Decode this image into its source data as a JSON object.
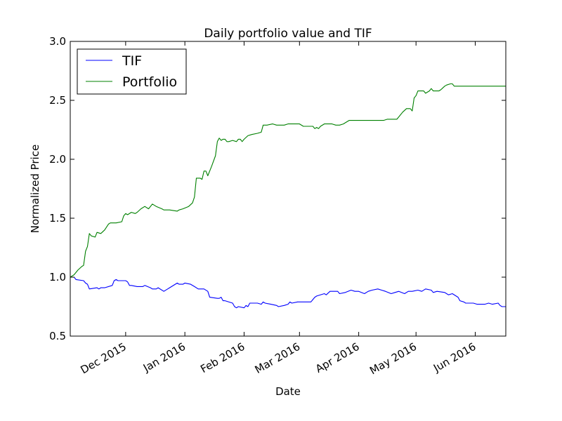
{
  "chart_data": {
    "type": "line",
    "title": "Daily portfolio value and TIF",
    "xlabel": "Date",
    "ylabel": "Normalized Price",
    "ylim": [
      0.5,
      3.0
    ],
    "xlim": [
      "2015-11-02",
      "2016-06-17"
    ],
    "yticks": [
      {
        "value": 0.5,
        "label": "0.5"
      },
      {
        "value": 1.0,
        "label": "1.0"
      },
      {
        "value": 1.5,
        "label": "1.5"
      },
      {
        "value": 2.0,
        "label": "2.0"
      },
      {
        "value": 2.5,
        "label": "2.5"
      },
      {
        "value": 3.0,
        "label": "3.0"
      }
    ],
    "xticks": [
      {
        "date": "2015-12-01",
        "label": "Dec 2015"
      },
      {
        "date": "2016-01-01",
        "label": "Jan 2016"
      },
      {
        "date": "2016-02-01",
        "label": "Feb 2016"
      },
      {
        "date": "2016-03-01",
        "label": "Mar 2016"
      },
      {
        "date": "2016-04-01",
        "label": "Apr 2016"
      },
      {
        "date": "2016-05-01",
        "label": "May 2016"
      },
      {
        "date": "2016-06-01",
        "label": "Jun 2016"
      }
    ],
    "grid": false,
    "legend_position": "top-left",
    "series": [
      {
        "name": "TIF",
        "color": "#0000ff",
        "points": [
          [
            "2015-11-02",
            1.0
          ],
          [
            "2015-11-04",
            1.0
          ],
          [
            "2015-11-05",
            0.98
          ],
          [
            "2015-11-09",
            0.97
          ],
          [
            "2015-11-10",
            0.95
          ],
          [
            "2015-11-11",
            0.94
          ],
          [
            "2015-11-12",
            0.9
          ],
          [
            "2015-11-16",
            0.91
          ],
          [
            "2015-11-17",
            0.9
          ],
          [
            "2015-11-18",
            0.91
          ],
          [
            "2015-11-20",
            0.91
          ],
          [
            "2015-11-24",
            0.93
          ],
          [
            "2015-11-25",
            0.97
          ],
          [
            "2015-11-26",
            0.98
          ],
          [
            "2015-11-27",
            0.97
          ],
          [
            "2015-12-01",
            0.97
          ],
          [
            "2015-12-02",
            0.96
          ],
          [
            "2015-12-03",
            0.93
          ],
          [
            "2015-12-04",
            0.93
          ],
          [
            "2015-12-07",
            0.92
          ],
          [
            "2015-12-10",
            0.92
          ],
          [
            "2015-12-11",
            0.93
          ],
          [
            "2015-12-14",
            0.91
          ],
          [
            "2015-12-15",
            0.9
          ],
          [
            "2015-12-17",
            0.9
          ],
          [
            "2015-12-18",
            0.91
          ],
          [
            "2015-12-21",
            0.88
          ],
          [
            "2015-12-23",
            0.9
          ],
          [
            "2015-12-24",
            0.91
          ],
          [
            "2015-12-28",
            0.95
          ],
          [
            "2015-12-29",
            0.94
          ],
          [
            "2015-12-31",
            0.94
          ],
          [
            "2016-01-01",
            0.95
          ],
          [
            "2016-01-04",
            0.94
          ],
          [
            "2016-01-06",
            0.92
          ],
          [
            "2016-01-08",
            0.9
          ],
          [
            "2016-01-11",
            0.9
          ],
          [
            "2016-01-13",
            0.88
          ],
          [
            "2016-01-14",
            0.83
          ],
          [
            "2016-01-18",
            0.82
          ],
          [
            "2016-01-19",
            0.82
          ],
          [
            "2016-01-20",
            0.83
          ],
          [
            "2016-01-21",
            0.8
          ],
          [
            "2016-01-22",
            0.8
          ],
          [
            "2016-01-26",
            0.78
          ],
          [
            "2016-01-27",
            0.75
          ],
          [
            "2016-01-28",
            0.74
          ],
          [
            "2016-01-29",
            0.75
          ],
          [
            "2016-02-01",
            0.74
          ],
          [
            "2016-02-02",
            0.76
          ],
          [
            "2016-02-03",
            0.75
          ],
          [
            "2016-02-04",
            0.78
          ],
          [
            "2016-02-08",
            0.78
          ],
          [
            "2016-02-10",
            0.77
          ],
          [
            "2016-02-11",
            0.79
          ],
          [
            "2016-02-12",
            0.78
          ],
          [
            "2016-02-15",
            0.77
          ],
          [
            "2016-02-18",
            0.76
          ],
          [
            "2016-02-19",
            0.75
          ],
          [
            "2016-02-22",
            0.76
          ],
          [
            "2016-02-24",
            0.77
          ],
          [
            "2016-02-25",
            0.79
          ],
          [
            "2016-02-26",
            0.78
          ],
          [
            "2016-02-29",
            0.79
          ],
          [
            "2016-03-03",
            0.79
          ],
          [
            "2016-03-07",
            0.79
          ],
          [
            "2016-03-08",
            0.81
          ],
          [
            "2016-03-09",
            0.83
          ],
          [
            "2016-03-10",
            0.84
          ],
          [
            "2016-03-14",
            0.86
          ],
          [
            "2016-03-15",
            0.85
          ],
          [
            "2016-03-17",
            0.88
          ],
          [
            "2016-03-21",
            0.88
          ],
          [
            "2016-03-22",
            0.86
          ],
          [
            "2016-03-25",
            0.87
          ],
          [
            "2016-03-28",
            0.89
          ],
          [
            "2016-03-30",
            0.88
          ],
          [
            "2016-04-01",
            0.88
          ],
          [
            "2016-04-04",
            0.86
          ],
          [
            "2016-04-06",
            0.88
          ],
          [
            "2016-04-08",
            0.89
          ],
          [
            "2016-04-11",
            0.9
          ],
          [
            "2016-04-13",
            0.89
          ],
          [
            "2016-04-15",
            0.88
          ],
          [
            "2016-04-18",
            0.86
          ],
          [
            "2016-04-20",
            0.87
          ],
          [
            "2016-04-22",
            0.88
          ],
          [
            "2016-04-25",
            0.86
          ],
          [
            "2016-04-27",
            0.88
          ],
          [
            "2016-04-29",
            0.88
          ],
          [
            "2016-05-02",
            0.89
          ],
          [
            "2016-05-04",
            0.88
          ],
          [
            "2016-05-06",
            0.9
          ],
          [
            "2016-05-09",
            0.89
          ],
          [
            "2016-05-10",
            0.87
          ],
          [
            "2016-05-12",
            0.88
          ],
          [
            "2016-05-16",
            0.87
          ],
          [
            "2016-05-18",
            0.85
          ],
          [
            "2016-05-20",
            0.86
          ],
          [
            "2016-05-23",
            0.83
          ],
          [
            "2016-05-24",
            0.8
          ],
          [
            "2016-05-26",
            0.79
          ],
          [
            "2016-05-27",
            0.78
          ],
          [
            "2016-05-31",
            0.78
          ],
          [
            "2016-06-02",
            0.77
          ],
          [
            "2016-06-06",
            0.77
          ],
          [
            "2016-06-08",
            0.78
          ],
          [
            "2016-06-10",
            0.77
          ],
          [
            "2016-06-13",
            0.78
          ],
          [
            "2016-06-14",
            0.76
          ],
          [
            "2016-06-15",
            0.75
          ],
          [
            "2016-06-17",
            0.75
          ]
        ]
      },
      {
        "name": "Portfolio",
        "color": "#008000",
        "points": [
          [
            "2015-11-02",
            1.0
          ],
          [
            "2015-11-04",
            1.02
          ],
          [
            "2015-11-06",
            1.06
          ],
          [
            "2015-11-08",
            1.09
          ],
          [
            "2015-11-09",
            1.1
          ],
          [
            "2015-11-10",
            1.22
          ],
          [
            "2015-11-11",
            1.26
          ],
          [
            "2015-11-12",
            1.37
          ],
          [
            "2015-11-13",
            1.35
          ],
          [
            "2015-11-15",
            1.34
          ],
          [
            "2015-11-16",
            1.38
          ],
          [
            "2015-11-18",
            1.37
          ],
          [
            "2015-11-20",
            1.4
          ],
          [
            "2015-11-22",
            1.45
          ],
          [
            "2015-11-23",
            1.46
          ],
          [
            "2015-11-26",
            1.46
          ],
          [
            "2015-11-29",
            1.47
          ],
          [
            "2015-11-30",
            1.52
          ],
          [
            "2015-12-01",
            1.54
          ],
          [
            "2015-12-02",
            1.53
          ],
          [
            "2015-12-04",
            1.55
          ],
          [
            "2015-12-06",
            1.54
          ],
          [
            "2015-12-07",
            1.55
          ],
          [
            "2015-12-09",
            1.58
          ],
          [
            "2015-12-11",
            1.6
          ],
          [
            "2015-12-13",
            1.58
          ],
          [
            "2015-12-15",
            1.62
          ],
          [
            "2015-12-17",
            1.6
          ],
          [
            "2015-12-20",
            1.58
          ],
          [
            "2015-12-21",
            1.57
          ],
          [
            "2015-12-24",
            1.57
          ],
          [
            "2015-12-28",
            1.56
          ],
          [
            "2015-12-29",
            1.57
          ],
          [
            "2015-12-31",
            1.58
          ],
          [
            "2016-01-03",
            1.6
          ],
          [
            "2016-01-05",
            1.63
          ],
          [
            "2016-01-06",
            1.68
          ],
          [
            "2016-01-07",
            1.84
          ],
          [
            "2016-01-09",
            1.84
          ],
          [
            "2016-01-10",
            1.83
          ],
          [
            "2016-01-11",
            1.9
          ],
          [
            "2016-01-12",
            1.9
          ],
          [
            "2016-01-13",
            1.86
          ],
          [
            "2016-01-15",
            1.94
          ],
          [
            "2016-01-17",
            2.03
          ],
          [
            "2016-01-18",
            2.15
          ],
          [
            "2016-01-19",
            2.18
          ],
          [
            "2016-01-20",
            2.16
          ],
          [
            "2016-01-21",
            2.17
          ],
          [
            "2016-01-22",
            2.17
          ],
          [
            "2016-01-23",
            2.15
          ],
          [
            "2016-01-24",
            2.15
          ],
          [
            "2016-01-26",
            2.16
          ],
          [
            "2016-01-28",
            2.15
          ],
          [
            "2016-01-29",
            2.17
          ],
          [
            "2016-01-30",
            2.17
          ],
          [
            "2016-01-31",
            2.15
          ],
          [
            "2016-02-01",
            2.17
          ],
          [
            "2016-02-03",
            2.2
          ],
          [
            "2016-02-05",
            2.21
          ],
          [
            "2016-02-08",
            2.22
          ],
          [
            "2016-02-10",
            2.23
          ],
          [
            "2016-02-11",
            2.29
          ],
          [
            "2016-02-13",
            2.29
          ],
          [
            "2016-02-16",
            2.3
          ],
          [
            "2016-02-18",
            2.29
          ],
          [
            "2016-02-22",
            2.29
          ],
          [
            "2016-02-24",
            2.3
          ],
          [
            "2016-02-25",
            2.3
          ],
          [
            "2016-02-27",
            2.3
          ],
          [
            "2016-03-01",
            2.3
          ],
          [
            "2016-03-03",
            2.28
          ],
          [
            "2016-03-05",
            2.28
          ],
          [
            "2016-03-08",
            2.28
          ],
          [
            "2016-03-09",
            2.26
          ],
          [
            "2016-03-10",
            2.27
          ],
          [
            "2016-03-11",
            2.26
          ],
          [
            "2016-03-12",
            2.28
          ],
          [
            "2016-03-14",
            2.3
          ],
          [
            "2016-03-16",
            2.3
          ],
          [
            "2016-03-18",
            2.3
          ],
          [
            "2016-03-20",
            2.29
          ],
          [
            "2016-03-22",
            2.29
          ],
          [
            "2016-03-24",
            2.3
          ],
          [
            "2016-03-25",
            2.31
          ],
          [
            "2016-03-27",
            2.33
          ],
          [
            "2016-03-29",
            2.33
          ],
          [
            "2016-04-01",
            2.33
          ],
          [
            "2016-04-05",
            2.33
          ],
          [
            "2016-04-10",
            2.33
          ],
          [
            "2016-04-14",
            2.33
          ],
          [
            "2016-04-16",
            2.34
          ],
          [
            "2016-04-17",
            2.34
          ],
          [
            "2016-04-19",
            2.34
          ],
          [
            "2016-04-21",
            2.34
          ],
          [
            "2016-04-24",
            2.4
          ],
          [
            "2016-04-26",
            2.43
          ],
          [
            "2016-04-28",
            2.43
          ],
          [
            "2016-04-29",
            2.41
          ],
          [
            "2016-04-30",
            2.52
          ],
          [
            "2016-05-01",
            2.54
          ],
          [
            "2016-05-02",
            2.58
          ],
          [
            "2016-05-03",
            2.58
          ],
          [
            "2016-05-05",
            2.58
          ],
          [
            "2016-05-06",
            2.56
          ],
          [
            "2016-05-08",
            2.58
          ],
          [
            "2016-05-09",
            2.6
          ],
          [
            "2016-05-10",
            2.58
          ],
          [
            "2016-05-13",
            2.58
          ],
          [
            "2016-05-14",
            2.59
          ],
          [
            "2016-05-16",
            2.62
          ],
          [
            "2016-05-17",
            2.63
          ],
          [
            "2016-05-19",
            2.64
          ],
          [
            "2016-05-20",
            2.64
          ],
          [
            "2016-05-21",
            2.62
          ],
          [
            "2016-05-24",
            2.62
          ],
          [
            "2016-06-05",
            2.62
          ],
          [
            "2016-06-17",
            2.62
          ]
        ]
      }
    ]
  }
}
